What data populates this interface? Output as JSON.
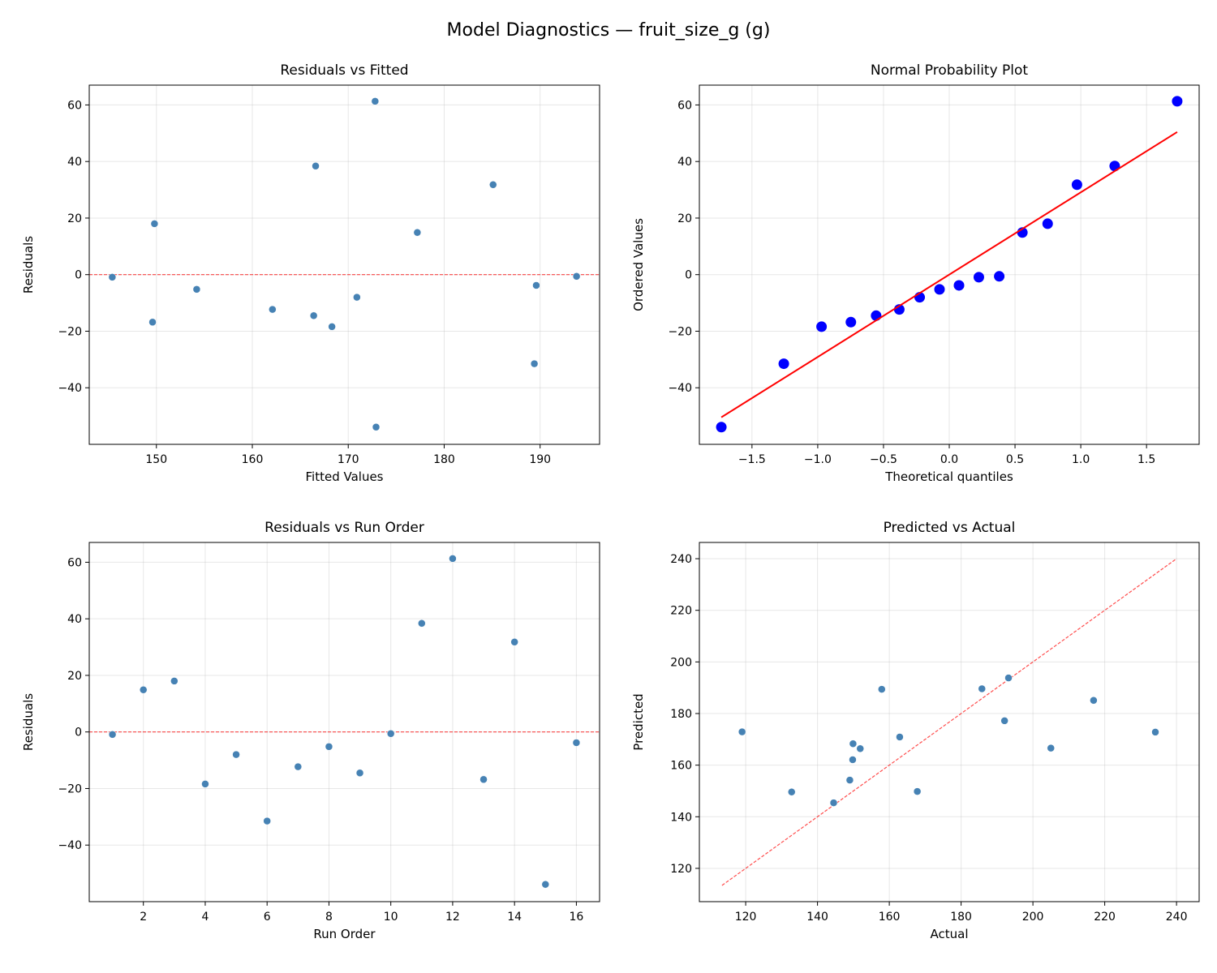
{
  "title": "Model Diagnostics — fruit_size_g (g)",
  "colors": {
    "points": "#4682b4",
    "qq_points": "#0000ff",
    "qq_line": "#ff0000",
    "reference_line": "#ff0000"
  },
  "chart_data": [
    {
      "type": "scatter",
      "title": "Residuals vs Fitted",
      "xlabel": "Fitted Values",
      "ylabel": "Residuals",
      "xlim": [
        143.0,
        196.2
      ],
      "ylim": [
        -60,
        67
      ],
      "xticks": [
        150,
        160,
        170,
        180,
        190
      ],
      "yticks": [
        -40,
        -20,
        0,
        20,
        40,
        60
      ],
      "grid": true,
      "hline": 0,
      "x": [
        145.4,
        177.2,
        149.8,
        168.3,
        170.9,
        189.4,
        162.1,
        154.2,
        166.4,
        193.8,
        166.6,
        172.8,
        149.6,
        185.1,
        172.9,
        189.6
      ],
      "y": [
        -0.9,
        14.9,
        18.0,
        -18.4,
        -8.0,
        -31.5,
        -12.3,
        -5.2,
        -14.5,
        -0.6,
        38.4,
        61.3,
        -16.8,
        31.8,
        -53.9,
        -3.8
      ]
    },
    {
      "type": "scatter",
      "title": "Normal Probability Plot",
      "xlabel": "Theoretical quantiles",
      "ylabel": "Ordered Values",
      "xlim": [
        -1.9,
        1.9
      ],
      "ylim": [
        -60,
        67
      ],
      "xticks": [
        -1.5,
        -1.0,
        -0.5,
        0.0,
        0.5,
        1.0,
        1.5
      ],
      "xtick_labels": [
        "−1.5",
        "−1.0",
        "−0.5",
        "0.0",
        "0.5",
        "1.0",
        "1.5"
      ],
      "yticks": [
        -40,
        -20,
        0,
        20,
        40,
        60
      ],
      "grid": true,
      "x": [
        -1.733,
        -1.258,
        -0.971,
        -0.748,
        -0.556,
        -0.38,
        -0.225,
        -0.074,
        0.074,
        0.225,
        0.38,
        0.556,
        0.748,
        0.971,
        1.258,
        1.733
      ],
      "y": [
        -53.9,
        -31.5,
        -18.4,
        -16.8,
        -14.5,
        -12.3,
        -8.0,
        -5.2,
        -3.8,
        -0.9,
        -0.6,
        14.9,
        18.0,
        31.8,
        38.4,
        61.3
      ],
      "fit_line": {
        "slope": 29.1,
        "intercept": 0.0
      }
    },
    {
      "type": "scatter",
      "title": "Residuals vs Run Order",
      "xlabel": "Run Order",
      "ylabel": "Residuals",
      "xlim": [
        0.25,
        16.75
      ],
      "ylim": [
        -60,
        67
      ],
      "xticks": [
        2,
        4,
        6,
        8,
        10,
        12,
        14,
        16
      ],
      "yticks": [
        -40,
        -20,
        0,
        20,
        40,
        60
      ],
      "grid": true,
      "hline": 0,
      "x": [
        1,
        2,
        3,
        4,
        5,
        6,
        7,
        8,
        9,
        10,
        11,
        12,
        13,
        14,
        15,
        16
      ],
      "y": [
        -0.9,
        14.9,
        18.0,
        -18.4,
        -8.0,
        -31.5,
        -12.3,
        -5.2,
        -14.5,
        -0.6,
        38.4,
        61.3,
        -16.8,
        31.8,
        -53.9,
        -3.8
      ]
    },
    {
      "type": "scatter",
      "title": "Predicted vs Actual",
      "xlabel": "Actual",
      "ylabel": "Predicted",
      "xlim": [
        107.1,
        246.3
      ],
      "ylim": [
        107.1,
        246.3
      ],
      "xticks": [
        120,
        140,
        160,
        180,
        200,
        220,
        240
      ],
      "yticks": [
        120,
        140,
        160,
        180,
        200,
        220,
        240
      ],
      "grid": true,
      "identity_line": [
        113.4,
        240.0
      ],
      "x": [
        144.5,
        192.1,
        167.8,
        149.9,
        162.9,
        157.9,
        149.8,
        149.0,
        151.9,
        193.2,
        205.0,
        234.1,
        132.8,
        216.9,
        119.0,
        185.8
      ],
      "y": [
        145.4,
        177.2,
        149.8,
        168.3,
        170.9,
        189.4,
        162.1,
        154.2,
        166.4,
        193.8,
        166.6,
        172.8,
        149.6,
        185.1,
        172.9,
        189.6
      ]
    }
  ]
}
